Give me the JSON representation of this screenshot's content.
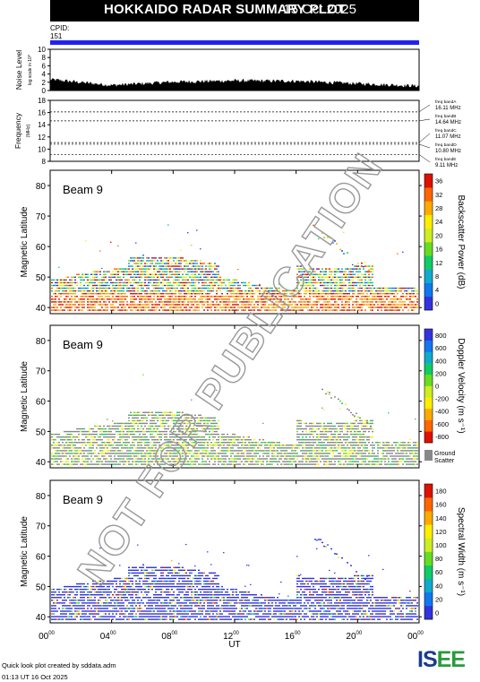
{
  "header": {
    "title": "HOKKAIDO RADAR SUMMARY PLOT",
    "date": "15 Oct 2025"
  },
  "cpid": {
    "label": "CPID:",
    "value": "151"
  },
  "colors": {
    "cpid_bar": "#2222ee",
    "ground_scatter": "#888888"
  },
  "chart_data": [
    {
      "type": "area",
      "panel": "noise",
      "ylabel": "Noise Level",
      "ylabel_small": "log scale in 10^",
      "ylim": [
        0,
        10
      ],
      "yticks": [
        "0",
        "2",
        "4",
        "6",
        "8",
        "10"
      ],
      "x": [
        "00:00",
        "04:00",
        "08:00",
        "12:00",
        "16:00",
        "20:00",
        "24:00"
      ],
      "values": [
        2.6,
        1.2,
        2.0,
        2.3,
        2.2,
        1.6,
        1.0
      ]
    },
    {
      "type": "line",
      "panel": "frequency",
      "ylabel": "Frequency",
      "ylabel_small": "(MHz)",
      "ylim": [
        8,
        18
      ],
      "yticks": [
        "8",
        "10",
        "12",
        "14",
        "16",
        "18"
      ],
      "bands": [
        {
          "name": "freq bandA",
          "value": "16.11 MHz",
          "mhz": 16.11
        },
        {
          "name": "freq bandB",
          "value": "14.64 MHz",
          "mhz": 14.64
        },
        {
          "name": "freq bandC",
          "value": "11.07 MHz",
          "mhz": 11.07
        },
        {
          "name": "freq bandD",
          "value": "10.80 MHz",
          "mhz": 10.8
        },
        {
          "name": "freq bandE",
          "value": "9.11 MHz",
          "mhz": 9.11
        }
      ]
    },
    {
      "type": "heatmap",
      "panel": "power",
      "beam_label": "Beam 9",
      "ylabel": "Magnetic Latitude",
      "colorbar_label": "Backscatter Power (dB)",
      "ylim": [
        38,
        85
      ],
      "yticks": [
        "40",
        "50",
        "60",
        "70",
        "80"
      ],
      "colorbar_ticks": [
        "0",
        "4",
        "8",
        "12",
        "16",
        "20",
        "24",
        "28",
        "32",
        "36"
      ],
      "colorbar_colors": [
        "#3333dd",
        "#1177ee",
        "#11aacc",
        "#11cc66",
        "#66dd22",
        "#ccee22",
        "#ffee00",
        "#ffaa00",
        "#ff6600",
        "#dd1100"
      ]
    },
    {
      "type": "heatmap",
      "panel": "velocity",
      "beam_label": "Beam 9",
      "ylabel": "Magnetic Latitude",
      "colorbar_label": "Doppler Velocity (m s⁻¹)",
      "ylim": [
        38,
        85
      ],
      "yticks": [
        "40",
        "50",
        "60",
        "70",
        "80"
      ],
      "colorbar_ticks": [
        "-800",
        "-600",
        "-400",
        "-200",
        "0",
        "200",
        "400",
        "600",
        "800"
      ],
      "colorbar_colors": [
        "#dd1100",
        "#ff6600",
        "#ffaa00",
        "#ffee00",
        "#ccee22",
        "#66dd22",
        "#11cc66",
        "#11aacc",
        "#1177ee",
        "#3333dd"
      ],
      "ground_scatter_label": [
        "Ground",
        "Scatter"
      ]
    },
    {
      "type": "heatmap",
      "panel": "width",
      "beam_label": "Beam 9",
      "ylabel": "Magnetic Latitude",
      "colorbar_label": "Spectral Width (m s⁻¹)",
      "ylim": [
        38,
        85
      ],
      "yticks": [
        "40",
        "50",
        "60",
        "70",
        "80"
      ],
      "colorbar_ticks": [
        "0",
        "20",
        "40",
        "60",
        "80",
        "100",
        "120",
        "140",
        "160",
        "180"
      ],
      "colorbar_colors": [
        "#3333dd",
        "#1177ee",
        "#11aacc",
        "#11cc66",
        "#66dd22",
        "#ccee22",
        "#ffee00",
        "#ffaa00",
        "#ff6600",
        "#dd1100"
      ]
    }
  ],
  "xaxis": {
    "label": "UT",
    "ticks": [
      {
        "h": "00",
        "m": "00"
      },
      {
        "h": "04",
        "m": "00"
      },
      {
        "h": "08",
        "m": "00"
      },
      {
        "h": "12",
        "m": "00"
      },
      {
        "h": "16",
        "m": "00"
      },
      {
        "h": "20",
        "m": "00"
      },
      {
        "h": "00",
        "m": "00"
      }
    ]
  },
  "watermark": "NOT FOR PUBLICATION",
  "footer": {
    "line1": "Quick look plot created by sddata.adm",
    "line2": "01:13 UT 16 Oct 2025"
  },
  "logo": {
    "part1": "IS",
    "part2": "EE"
  }
}
